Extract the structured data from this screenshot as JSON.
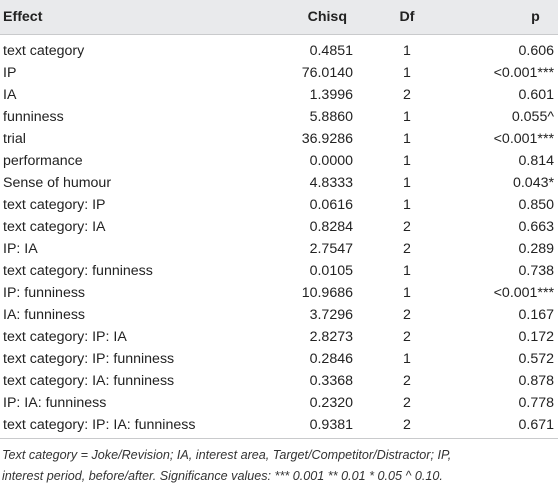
{
  "table": {
    "headers": {
      "effect": "Effect",
      "chisq": "Chisq",
      "df": "Df",
      "p": "p"
    },
    "rows": [
      {
        "effect": "text category",
        "chisq": "0.4851",
        "df": "1",
        "p": "0.606"
      },
      {
        "effect": "IP",
        "chisq": "76.0140",
        "df": "1",
        "p": "<0.001***"
      },
      {
        "effect": "IA",
        "chisq": "1.3996",
        "df": "2",
        "p": "0.601"
      },
      {
        "effect": "funniness",
        "chisq": "5.8860",
        "df": "1",
        "p": "0.055^"
      },
      {
        "effect": "trial",
        "chisq": "36.9286",
        "df": "1",
        "p": "<0.001***"
      },
      {
        "effect": "performance",
        "chisq": "0.0000",
        "df": "1",
        "p": "0.814"
      },
      {
        "effect": "Sense of humour",
        "chisq": "4.8333",
        "df": "1",
        "p": "0.043*"
      },
      {
        "effect": "text category: IP",
        "chisq": "0.0616",
        "df": "1",
        "p": "0.850"
      },
      {
        "effect": "text category: IA",
        "chisq": "0.8284",
        "df": "2",
        "p": "0.663"
      },
      {
        "effect": "IP: IA",
        "chisq": "2.7547",
        "df": "2",
        "p": "0.289"
      },
      {
        "effect": "text category: funniness",
        "chisq": "0.0105",
        "df": "1",
        "p": "0.738"
      },
      {
        "effect": "IP: funniness",
        "chisq": "10.9686",
        "df": "1",
        "p": "<0.001***"
      },
      {
        "effect": "IA: funniness",
        "chisq": "3.7296",
        "df": "2",
        "p": "0.167"
      },
      {
        "effect": "text category: IP: IA",
        "chisq": "2.8273",
        "df": "2",
        "p": "0.172"
      },
      {
        "effect": "text category: IP: funniness",
        "chisq": "0.2846",
        "df": "1",
        "p": "0.572"
      },
      {
        "effect": "text category: IA: funniness",
        "chisq": "0.3368",
        "df": "2",
        "p": "0.878"
      },
      {
        "effect": "IP: IA: funniness",
        "chisq": "0.2320",
        "df": "2",
        "p": "0.778"
      },
      {
        "effect": "text category: IP: IA: funniness",
        "chisq": "0.9381",
        "df": "2",
        "p": "0.671"
      }
    ]
  },
  "footnote": {
    "line1": "Text category = Joke/Revision; IA, interest area, Target/Competitor/Distractor; IP,",
    "line2": "interest period, before/after. Significance values: *** 0.001 ** 0.01 * 0.05 ^ 0.10."
  }
}
